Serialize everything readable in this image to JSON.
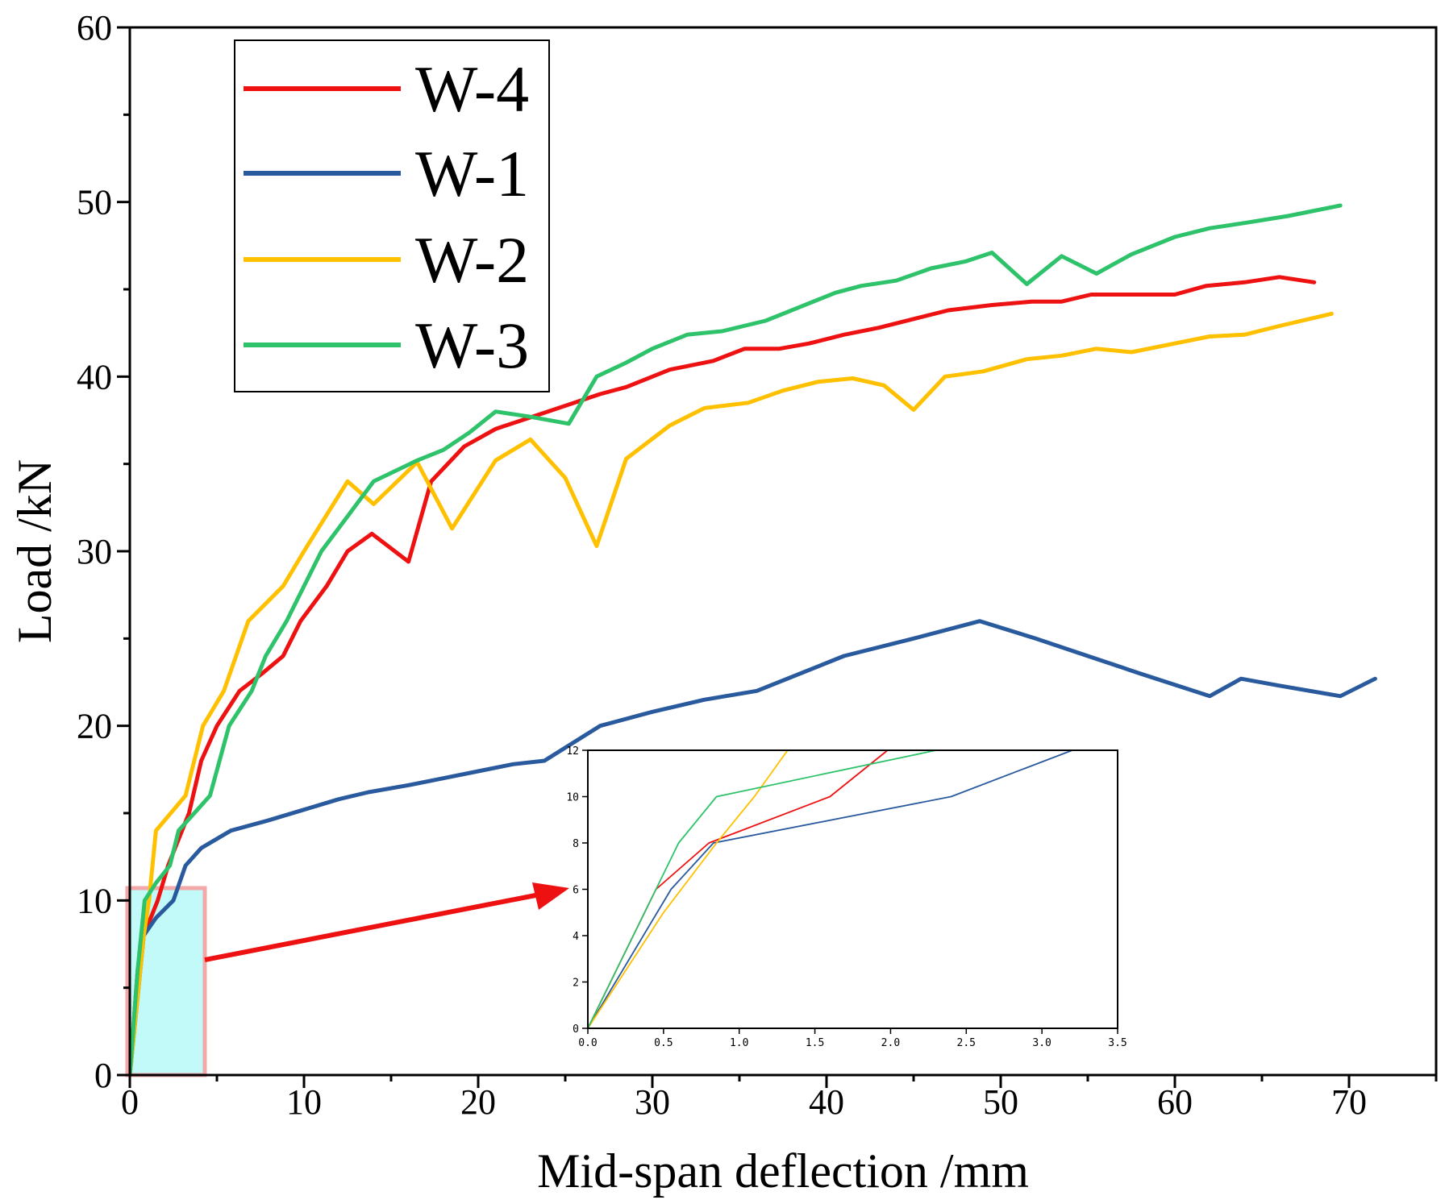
{
  "chart_data": [
    {
      "type": "line",
      "title": "",
      "xlabel": "Mid-span deflection /mm",
      "ylabel": "Load /kN",
      "xlim": [
        0,
        75
      ],
      "ylim": [
        0,
        60
      ],
      "xticks": [
        "0",
        "10",
        "20",
        "30",
        "40",
        "50",
        "60",
        "70"
      ],
      "yticks": [
        "0",
        "10",
        "20",
        "30",
        "40",
        "50",
        "60"
      ],
      "legend_position": "top-left",
      "series": [
        {
          "name": "W-4",
          "color": "#ee1111",
          "x": [
            0,
            0.45,
            0.8,
            1.6,
            2.2,
            3.4,
            4.1,
            5.0,
            6.3,
            7.6,
            8.8,
            9.8,
            11.3,
            12.5,
            13.9,
            16.0,
            17.3,
            19.2,
            21.0,
            24.0,
            27.0,
            28.5,
            31.0,
            33.5,
            35.3,
            37.3,
            39.0,
            41.0,
            43.0,
            45.0,
            47.0,
            49.5,
            51.8,
            53.5,
            55.2,
            57.0,
            60.0,
            61.8,
            64.0,
            66.0,
            68.0
          ],
          "y": [
            0,
            6,
            8,
            10,
            12,
            15,
            18,
            20,
            22,
            23,
            24,
            26,
            28,
            30,
            31,
            29.4,
            34,
            36,
            37,
            38,
            39,
            39.4,
            40.4,
            40.9,
            41.6,
            41.6,
            41.9,
            42.4,
            42.8,
            43.3,
            43.8,
            44.1,
            44.3,
            44.3,
            44.7,
            44.7,
            44.7,
            45.2,
            45.4,
            45.7,
            45.4
          ]
        },
        {
          "name": "W-1",
          "color": "#2a5a9e",
          "x": [
            0,
            0.8,
            1.5,
            2.5,
            3.2,
            4.1,
            5.8,
            8.0,
            10.0,
            12.0,
            13.7,
            16.0,
            18.0,
            20.0,
            22.0,
            23.8,
            27.0,
            30.0,
            33.0,
            36.0,
            38.5,
            41.0,
            45.0,
            48.8,
            52.0,
            55.0,
            58.0,
            62.0,
            63.8,
            66.0,
            69.5,
            71.5
          ],
          "y": [
            0,
            8,
            9,
            10,
            12,
            13,
            14,
            14.6,
            15.2,
            15.8,
            16.2,
            16.6,
            17.0,
            17.4,
            17.8,
            18.0,
            20.0,
            20.8,
            21.5,
            22.0,
            23.0,
            24.0,
            25.0,
            26.0,
            25.0,
            24.0,
            23.0,
            21.7,
            22.7,
            22.3,
            21.7,
            22.7
          ]
        },
        {
          "name": "W-2",
          "color": "#ffc000",
          "x": [
            0,
            0.5,
            0.8,
            1.1,
            1.5,
            3.2,
            4.2,
            5.4,
            6.8,
            8.8,
            10.0,
            12.5,
            14.0,
            16.5,
            18.5,
            21.0,
            23.0,
            25.0,
            26.8,
            28.5,
            31.0,
            33.0,
            35.5,
            37.5,
            39.5,
            41.5,
            43.3,
            45.0,
            46.8,
            49.0,
            51.5,
            53.5,
            55.5,
            57.5,
            59.5,
            62.0,
            64.0,
            66.0,
            69.0
          ],
          "y": [
            0,
            5,
            8,
            10,
            14,
            16,
            20,
            22,
            26,
            28,
            30,
            34,
            32.7,
            35.1,
            31.3,
            35.2,
            36.4,
            34.2,
            30.3,
            35.3,
            37.2,
            38.2,
            38.5,
            39.2,
            39.7,
            39.9,
            39.5,
            38.1,
            40.0,
            40.3,
            41.0,
            41.2,
            41.6,
            41.4,
            41.8,
            42.3,
            42.4,
            42.9,
            43.6
          ]
        },
        {
          "name": "W-3",
          "color": "#2ec36a",
          "x": [
            0,
            0.45,
            0.85,
            1.5,
            2.3,
            2.8,
            4.6,
            5.7,
            7.0,
            7.8,
            9.0,
            11.0,
            12.5,
            14.0,
            16.5,
            18.0,
            19.5,
            21.0,
            23.0,
            25.2,
            26.8,
            28.5,
            30.0,
            32.0,
            34.0,
            36.5,
            38.5,
            40.5,
            42.0,
            44.0,
            46.0,
            48.0,
            49.5,
            51.5,
            53.5,
            55.5,
            57.5,
            60.0,
            62.0,
            64.0,
            66.5,
            69.5
          ],
          "y": [
            0,
            6,
            10,
            11,
            12,
            14,
            16,
            20,
            22,
            24,
            26,
            30,
            32,
            34,
            35.2,
            35.8,
            36.8,
            38,
            37.7,
            37.3,
            40,
            40.8,
            41.6,
            42.4,
            42.6,
            43.2,
            44.0,
            44.8,
            45.2,
            45.5,
            46.2,
            46.6,
            47.1,
            45.3,
            46.9,
            45.9,
            47.0,
            48.0,
            48.5,
            48.8,
            49.2,
            49.8
          ]
        }
      ]
    },
    {
      "type": "line",
      "title": "",
      "xlabel": "",
      "ylabel": "",
      "xlim": [
        0,
        3.5
      ],
      "ylim": [
        0,
        12
      ],
      "xticks": [
        "0.0",
        "0.5",
        "1.0",
        "1.5",
        "2.0",
        "2.5",
        "3.0",
        "3.5"
      ],
      "yticks": [
        "0",
        "2",
        "4",
        "6",
        "8",
        "10",
        "12"
      ],
      "series": [
        {
          "name": "W-4",
          "color": "#ee1111",
          "x": [
            0,
            0.45,
            0.8,
            1.6,
            1.98
          ],
          "y": [
            0,
            6,
            8,
            10,
            12
          ]
        },
        {
          "name": "W-1",
          "color": "#2a5a9e",
          "x": [
            0,
            0.55,
            0.83,
            2.4,
            3.2
          ],
          "y": [
            0,
            6,
            8,
            10,
            12
          ]
        },
        {
          "name": "W-2",
          "color": "#ffc000",
          "x": [
            0,
            0.5,
            0.85,
            1.1,
            1.32
          ],
          "y": [
            0,
            5,
            8,
            10,
            12
          ]
        },
        {
          "name": "W-3",
          "color": "#2ec36a",
          "x": [
            0,
            0.45,
            0.6,
            0.85,
            2.3
          ],
          "y": [
            0,
            6,
            8,
            10,
            12
          ]
        }
      ]
    }
  ]
}
